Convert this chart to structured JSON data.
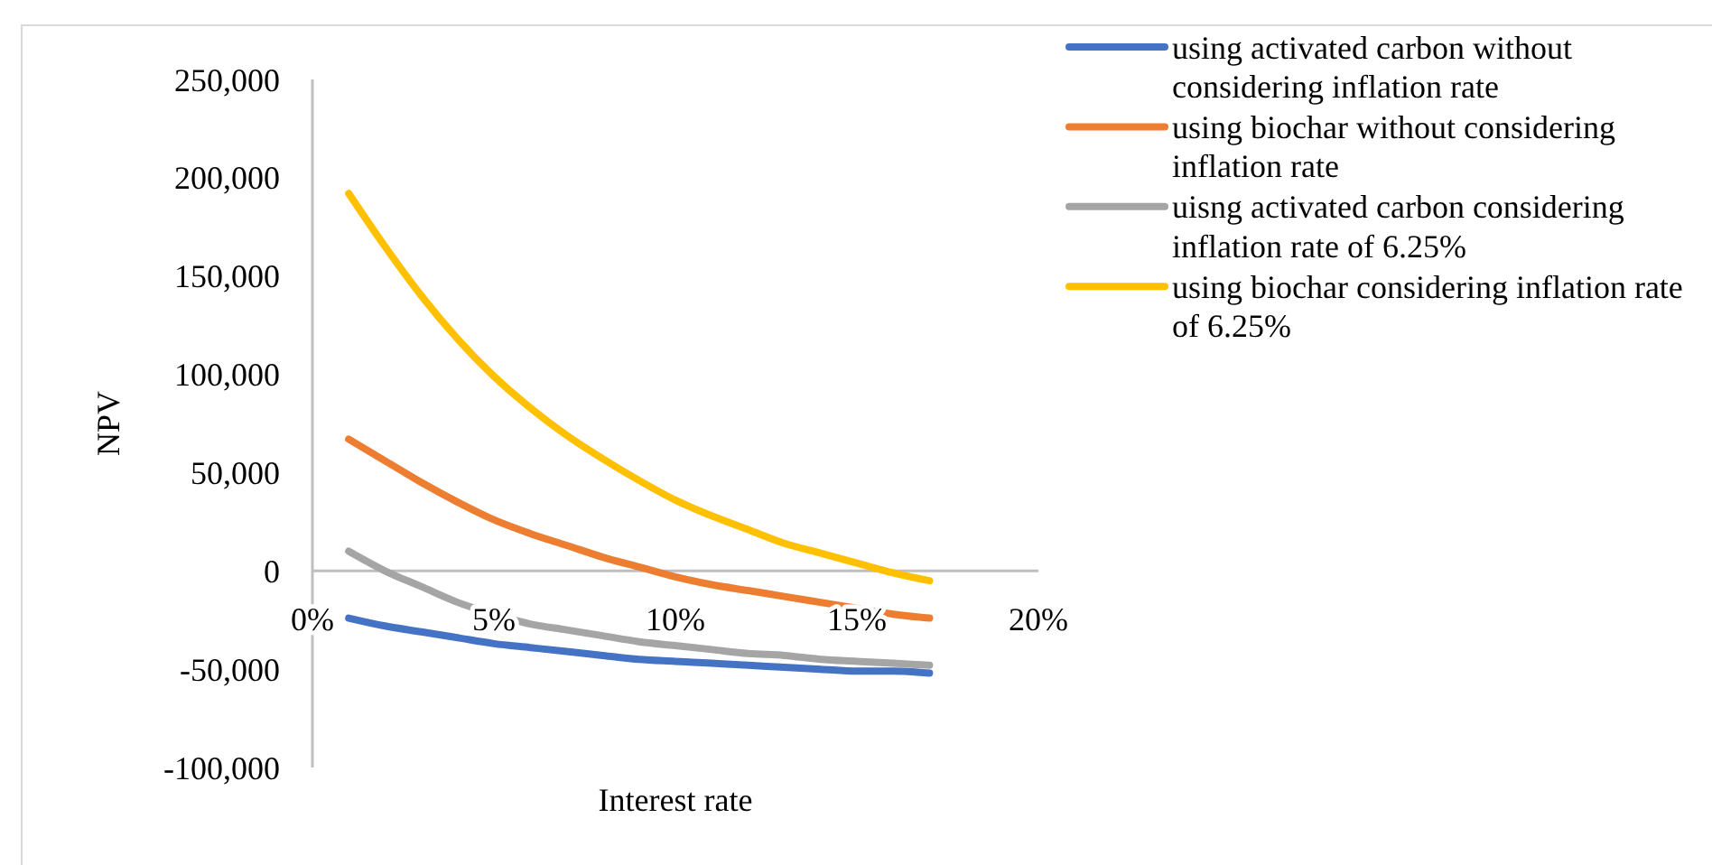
{
  "chart_data": {
    "type": "line",
    "xlabel": "Interest rate",
    "ylabel": "NPV",
    "x": [
      0.01,
      0.02,
      0.03,
      0.04,
      0.05,
      0.06,
      0.07,
      0.08,
      0.09,
      0.1,
      0.11,
      0.12,
      0.13,
      0.14,
      0.15,
      0.16,
      0.17
    ],
    "xlim": [
      0,
      0.2
    ],
    "xticks": [
      {
        "value": 0,
        "label": "0%"
      },
      {
        "value": 0.05,
        "label": "5%"
      },
      {
        "value": 0.1,
        "label": "10%"
      },
      {
        "value": 0.15,
        "label": "15%"
      },
      {
        "value": 0.2,
        "label": "20%"
      }
    ],
    "ylim": [
      -100000,
      250000
    ],
    "yticks": [
      {
        "value": -100000,
        "label": "-100,000"
      },
      {
        "value": -50000,
        "label": "-50,000"
      },
      {
        "value": 0,
        "label": "0"
      },
      {
        "value": 50000,
        "label": "50,000"
      },
      {
        "value": 100000,
        "label": "100,000"
      },
      {
        "value": 150000,
        "label": "150,000"
      },
      {
        "value": 200000,
        "label": "200,000"
      },
      {
        "value": 250000,
        "label": "250,000"
      }
    ],
    "grid": false,
    "legend": "right",
    "marker": "none",
    "line_style": "solid",
    "series": [
      {
        "name": "using activated carbon without considering inflation rate",
        "color": "#4472c4",
        "values": [
          -24000,
          -28000,
          -31000,
          -34000,
          -37000,
          -39000,
          -41000,
          -43000,
          -45000,
          -46000,
          -47000,
          -48000,
          -49000,
          -50000,
          -51000,
          -51000,
          -52000
        ]
      },
      {
        "name": "using biochar without considering inflation rate",
        "color": "#ed7d31",
        "values": [
          67000,
          56000,
          45000,
          35000,
          26000,
          19000,
          13000,
          7000,
          2000,
          -3000,
          -7000,
          -10000,
          -13000,
          -16000,
          -19000,
          -22000,
          -24000
        ]
      },
      {
        "name": "uisng activated carbon considering inflation rate of 6.25%",
        "color": "#a5a5a5",
        "values": [
          10000,
          0,
          -8000,
          -16000,
          -22000,
          -27000,
          -30000,
          -33000,
          -36000,
          -38000,
          -40000,
          -42000,
          -43000,
          -45000,
          -46000,
          -47000,
          -48000
        ]
      },
      {
        "name": "using biochar considering inflation rate of 6.25%",
        "color": "#ffc000",
        "values": [
          192000,
          165000,
          140000,
          118000,
          99000,
          83000,
          69000,
          57000,
          46000,
          36000,
          28000,
          21000,
          14000,
          9000,
          4000,
          -1000,
          -5000
        ]
      }
    ]
  }
}
